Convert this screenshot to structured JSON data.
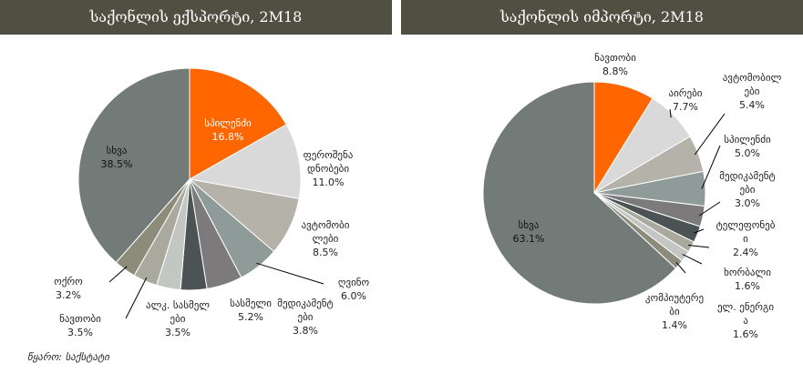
{
  "chart_data": [
    {
      "type": "pie",
      "title": "საქონლის ექსპორტი, 2M18",
      "categories": [
        "სპილენძი",
        "ფეროშენადნობები",
        "ავტომობილები",
        "ღვინო",
        "სასმელი",
        "მედიკამენტები",
        "ალკ. სასმელები",
        "ნავთობი",
        "ოქრო",
        "სხვა"
      ],
      "values": [
        16.8,
        11.0,
        8.5,
        6.0,
        5.2,
        3.8,
        3.5,
        3.5,
        3.2,
        38.5
      ],
      "value_labels": [
        "16.8%",
        "11.0%",
        "8.5%",
        "6.0%",
        "5.2%",
        "3.8%",
        "3.5%",
        "3.5%",
        "3.2%",
        "38.5%"
      ],
      "colors": [
        "#ff6600",
        "#d9d9d9",
        "#b5b2a9",
        "#8f9b99",
        "#7d7a7b",
        "#4b5355",
        "#c3c7c3",
        "#a9aa9d",
        "#8d8c7b",
        "#737b78"
      ]
    },
    {
      "type": "pie",
      "title": "საქონლის იმპორტი, 2M18",
      "categories": [
        "ნავთობი",
        "აირები",
        "ავტომობილები",
        "სპილენძი",
        "მედიკამენტები",
        "ტელეფონები",
        "ხორბალი",
        "ელ. ენერგია",
        "კომპიუტერები",
        "სხვა"
      ],
      "values": [
        8.8,
        7.7,
        5.4,
        5.0,
        3.0,
        2.4,
        1.6,
        1.6,
        1.4,
        63.1
      ],
      "value_labels": [
        "8.8%",
        "7.7%",
        "5.4%",
        "5.0%",
        "3.0%",
        "2.4%",
        "1.6%",
        "1.6%",
        "1.4%",
        "63.1%"
      ],
      "colors": [
        "#ff6600",
        "#d9d9d9",
        "#b5b2a9",
        "#8f9b99",
        "#7d7a7b",
        "#4b5355",
        "#a9aa9d",
        "#c3c7c3",
        "#8d8c7b",
        "#737b78"
      ]
    }
  ],
  "source": "წყარო: საქსტატი"
}
